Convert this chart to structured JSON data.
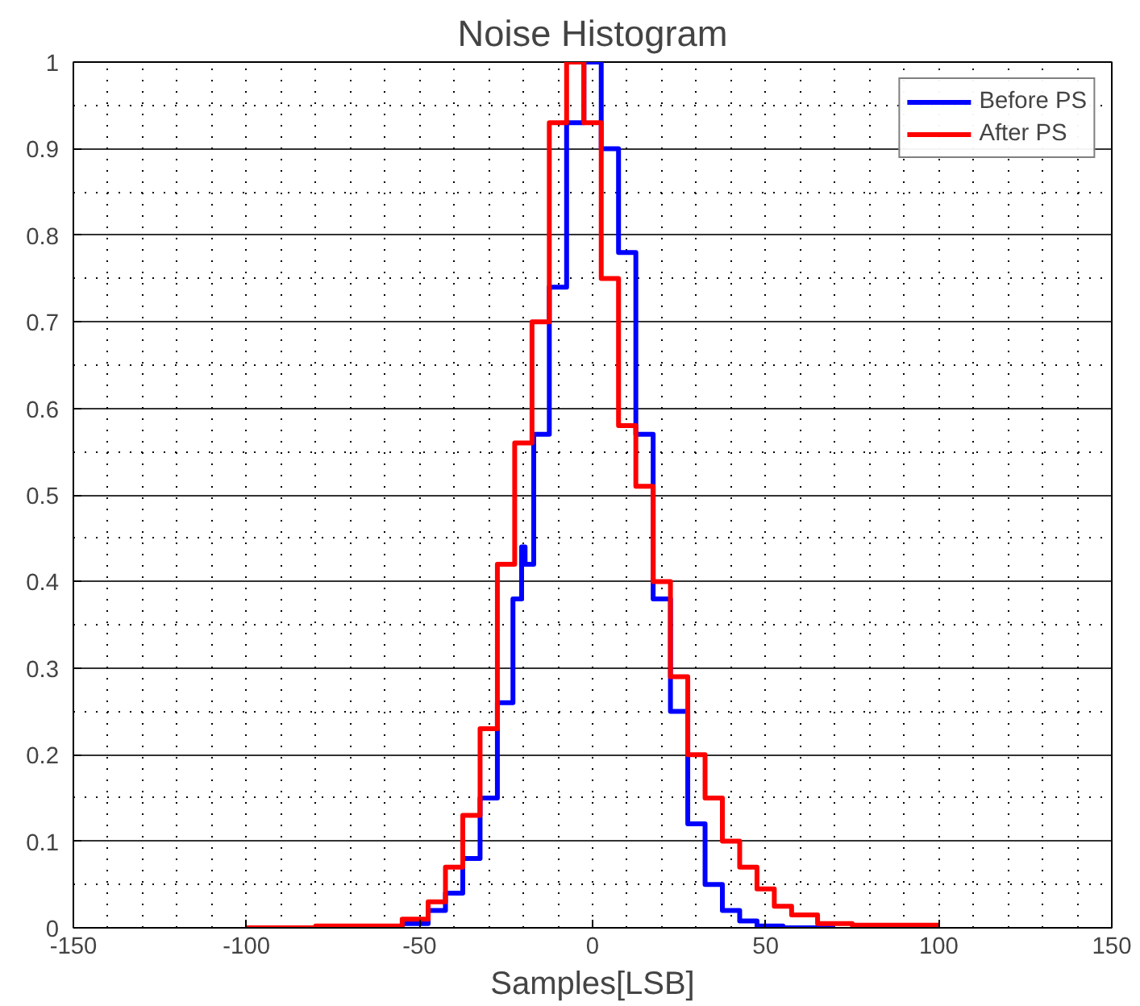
{
  "chart_data": {
    "type": "step",
    "title": "Noise Histogram",
    "xlabel": "Samples[LSB]",
    "xlim": [
      -150,
      150
    ],
    "xticks": [
      -150,
      -100,
      -50,
      0,
      50,
      100,
      150
    ],
    "ylim": [
      0,
      1
    ],
    "yticks": [
      0,
      0.1,
      0.2,
      0.3,
      0.4,
      0.5,
      0.6,
      0.7,
      0.8,
      0.9,
      1
    ],
    "grid": true,
    "legend": "top right",
    "line_style": "solid",
    "series": [
      {
        "name": "Before PS",
        "color": "#0000ff",
        "x": [
          -60,
          -50,
          -45,
          -40,
          -35,
          -30,
          -25,
          -21,
          -20,
          -19,
          -15,
          -10,
          -5,
          0,
          5,
          10,
          15,
          20,
          25,
          30,
          35,
          40,
          45,
          50,
          60,
          70
        ],
        "values": [
          0,
          0.005,
          0.02,
          0.04,
          0.08,
          0.15,
          0.26,
          0.38,
          0.44,
          0.42,
          0.57,
          0.74,
          0.93,
          1,
          0.9,
          0.78,
          0.57,
          0.38,
          0.25,
          0.12,
          0.05,
          0.02,
          0.008,
          0.002,
          0,
          0
        ]
      },
      {
        "name": "After PS",
        "color": "#ff0000",
        "x": [
          -100,
          -60,
          -50,
          -45,
          -40,
          -35,
          -30,
          -25,
          -20,
          -15,
          -10,
          -5,
          0,
          5,
          10,
          15,
          20,
          25,
          30,
          35,
          40,
          45,
          50,
          55,
          60,
          70,
          80,
          100
        ],
        "values": [
          0,
          0.002,
          0.01,
          0.03,
          0.07,
          0.13,
          0.23,
          0.42,
          0.56,
          0.7,
          0.93,
          1,
          0.93,
          0.75,
          0.58,
          0.51,
          0.4,
          0.29,
          0.2,
          0.15,
          0.1,
          0.07,
          0.045,
          0.025,
          0.015,
          0.005,
          0.003,
          0.003
        ]
      }
    ]
  }
}
